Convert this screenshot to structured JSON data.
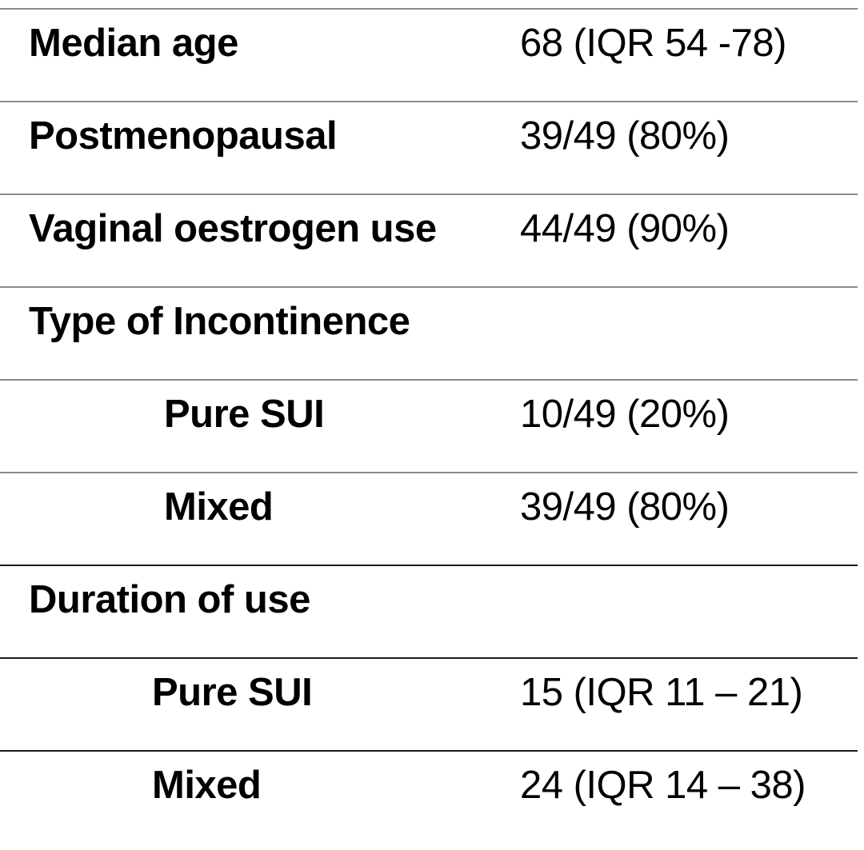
{
  "table": {
    "rows": [
      {
        "label": "Median age",
        "value": "68 (IQR 54 -78)"
      },
      {
        "label": "Postmenopausal",
        "value": "39/49 (80%)"
      },
      {
        "label": "Vaginal oestrogen use",
        "value": "44/49 (90%)"
      },
      {
        "label": "Type of Incontinence",
        "value": ""
      },
      {
        "label": "Pure SUI",
        "value": "10/49 (20%)"
      },
      {
        "label": "Mixed",
        "value": "39/49 (80%)"
      },
      {
        "label": "Duration of use",
        "value": ""
      },
      {
        "label": "Pure SUI",
        "value": "15 (IQR 11 – 21)"
      },
      {
        "label": "Mixed",
        "value": "24 (IQR 14 – 38)"
      }
    ]
  }
}
